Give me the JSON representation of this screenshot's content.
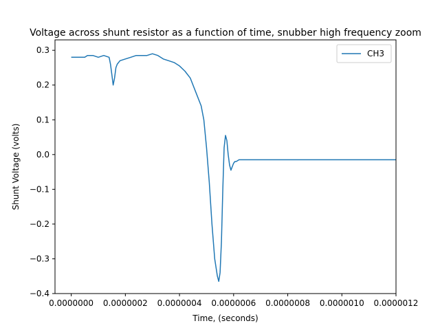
{
  "chart_data": {
    "type": "line",
    "title": "Voltage across shunt resistor as a function of time, snubber high frequency zoom",
    "xlabel": "Time, (seconds)",
    "ylabel": "Shunt Voltage (volts)",
    "xlim": [
      -6e-08,
      1.2e-06
    ],
    "ylim": [
      -0.4,
      0.33
    ],
    "xticks": [
      0.0,
      2e-07,
      4e-07,
      6e-07,
      8e-07,
      1e-06,
      1.2e-06
    ],
    "xtick_labels": [
      "0.0000000",
      "0.0000002",
      "0.0000004",
      "0.0000006",
      "0.0000008",
      "0.0000010",
      "0.0000012"
    ],
    "yticks": [
      -0.4,
      -0.3,
      -0.2,
      -0.1,
      0.0,
      0.1,
      0.2,
      0.3
    ],
    "ytick_labels": [
      "−0.4",
      "−0.3",
      "−0.2",
      "−0.1",
      "0.0",
      "0.1",
      "0.2",
      "0.3"
    ],
    "legend": {
      "position": "upper right",
      "entries": [
        "CH3"
      ]
    },
    "grid": false,
    "series": [
      {
        "name": "CH3",
        "color": "#1f77b4",
        "x": [
          0.0,
          2e-08,
          4e-08,
          5e-08,
          6e-08,
          8e-08,
          1e-07,
          1.2e-07,
          1.4e-07,
          1.45e-07,
          1.5e-07,
          1.55e-07,
          1.6e-07,
          1.65e-07,
          1.7e-07,
          1.8e-07,
          2e-07,
          2.2e-07,
          2.4e-07,
          2.6e-07,
          2.8e-07,
          3e-07,
          3.2e-07,
          3.4e-07,
          3.6e-07,
          3.8e-07,
          4e-07,
          4.2e-07,
          4.4e-07,
          4.6e-07,
          4.8e-07,
          4.9e-07,
          5e-07,
          5.1e-07,
          5.2e-07,
          5.3e-07,
          5.4e-07,
          5.45e-07,
          5.5e-07,
          5.55e-07,
          5.6e-07,
          5.65e-07,
          5.7e-07,
          5.75e-07,
          5.8e-07,
          5.85e-07,
          5.9e-07,
          5.95e-07,
          6e-07,
          6.05e-07,
          6.1e-07,
          6.2e-07,
          6.3e-07,
          6.5e-07,
          6.8e-07,
          7e-07,
          7.5e-07,
          8e-07,
          8.5e-07,
          9e-07,
          9.5e-07,
          1e-06,
          1.05e-06,
          1.1e-06,
          1.15e-06,
          1.2e-06
        ],
        "y": [
          0.28,
          0.28,
          0.28,
          0.28,
          0.285,
          0.285,
          0.28,
          0.285,
          0.28,
          0.26,
          0.23,
          0.2,
          0.22,
          0.25,
          0.26,
          0.27,
          0.275,
          0.28,
          0.285,
          0.285,
          0.285,
          0.29,
          0.285,
          0.275,
          0.27,
          0.265,
          0.255,
          0.24,
          0.22,
          0.18,
          0.14,
          0.1,
          0.02,
          -0.08,
          -0.2,
          -0.3,
          -0.35,
          -0.365,
          -0.34,
          -0.25,
          -0.1,
          0.02,
          0.055,
          0.04,
          0.0,
          -0.03,
          -0.045,
          -0.035,
          -0.025,
          -0.02,
          -0.02,
          -0.015,
          -0.015,
          -0.015,
          -0.015,
          -0.015,
          -0.015,
          -0.015,
          -0.015,
          -0.015,
          -0.015,
          -0.015,
          -0.015,
          -0.015,
          -0.015,
          -0.015
        ]
      }
    ]
  }
}
